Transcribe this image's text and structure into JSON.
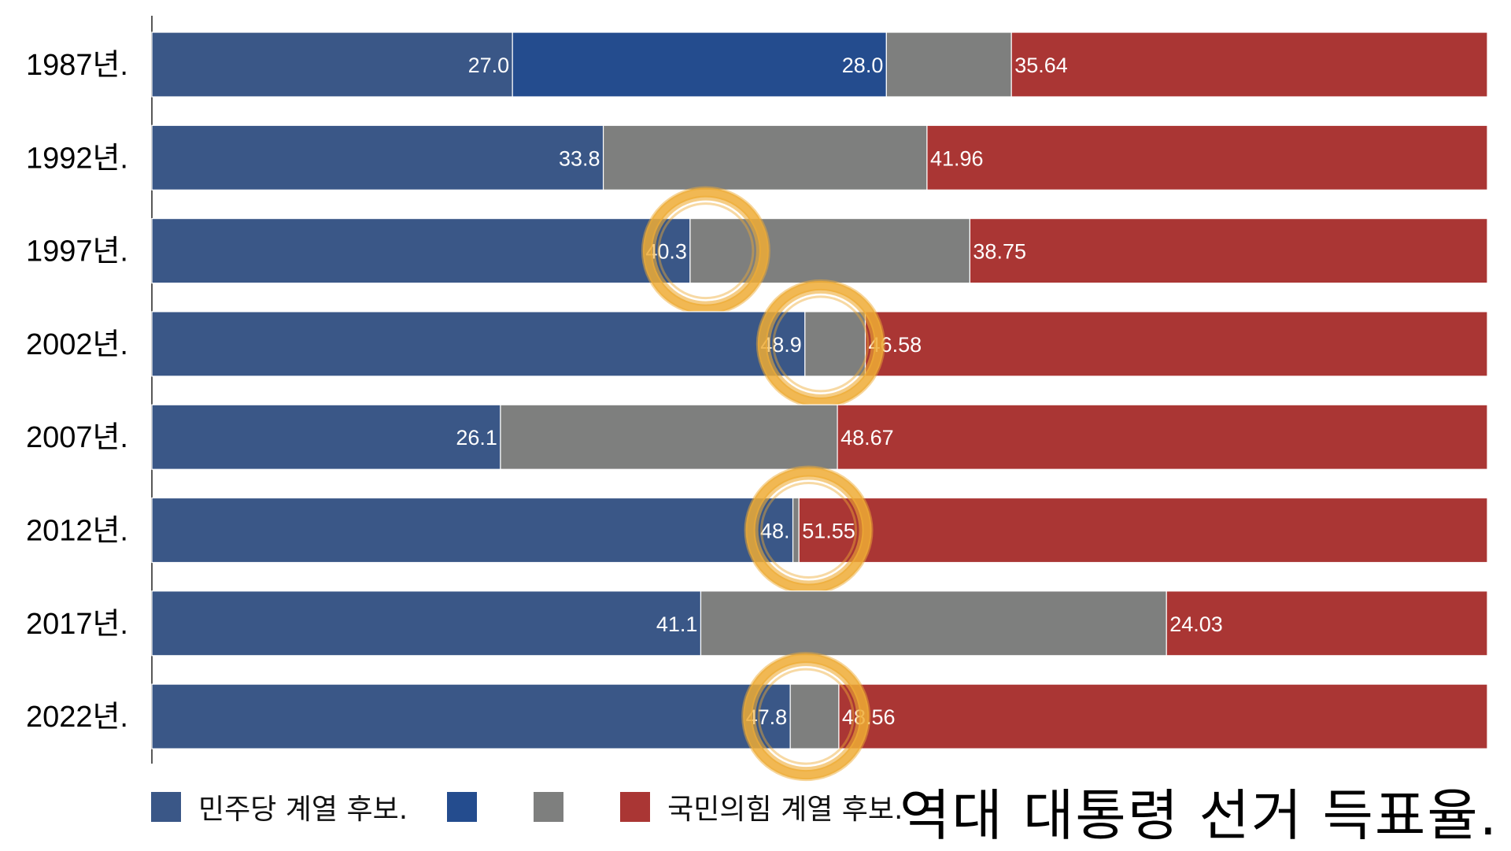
{
  "chart_data": {
    "type": "bar",
    "orientation": "horizontal",
    "stacked": true,
    "normalized_to_full_width": true,
    "title": "역대 대통령 선거 득표율.",
    "categories": [
      "1987년.",
      "1992년.",
      "1997년.",
      "2002년.",
      "2007년.",
      "2012년.",
      "2017년.",
      "2022년."
    ],
    "series": [
      {
        "name": "민주당 계열 후보.",
        "color": "#3a5787",
        "values": [
          27.0,
          33.8,
          40.3,
          48.9,
          26.1,
          48.0,
          41.1,
          47.8
        ],
        "labels": [
          "27.0",
          "33.8",
          "40.3",
          "48.9",
          "26.1",
          "48.",
          "41.1",
          "47.8"
        ]
      },
      {
        "name": "",
        "color": "#244c8e",
        "values": [
          28.0,
          0,
          0,
          0,
          0,
          0,
          0,
          0
        ],
        "labels": [
          "28.0",
          "",
          "",
          "",
          "",
          "",
          "",
          ""
        ]
      },
      {
        "name": "",
        "color": "#7e7f7e",
        "values": [
          9.36,
          24.24,
          20.95,
          4.52,
          25.23,
          0.45,
          34.87,
          3.64
        ],
        "labels": [
          "",
          "",
          "",
          "",
          "",
          "",
          "",
          ""
        ]
      },
      {
        "name": "국민의힘 계열 후보.",
        "color": "#aa3634",
        "values": [
          35.64,
          41.96,
          38.75,
          46.58,
          48.67,
          51.55,
          24.03,
          48.56
        ],
        "labels": [
          "35.64",
          "41.96",
          "38.75",
          "46.58",
          "48.67",
          "51.55",
          "24.03",
          "48.56"
        ]
      }
    ],
    "highlighted_categories": [
      "1997년.",
      "2002년.",
      "2012년.",
      "2022년."
    ],
    "highlight_color": "#eeab35",
    "legend_placement": "bottom-left",
    "grid": false
  }
}
